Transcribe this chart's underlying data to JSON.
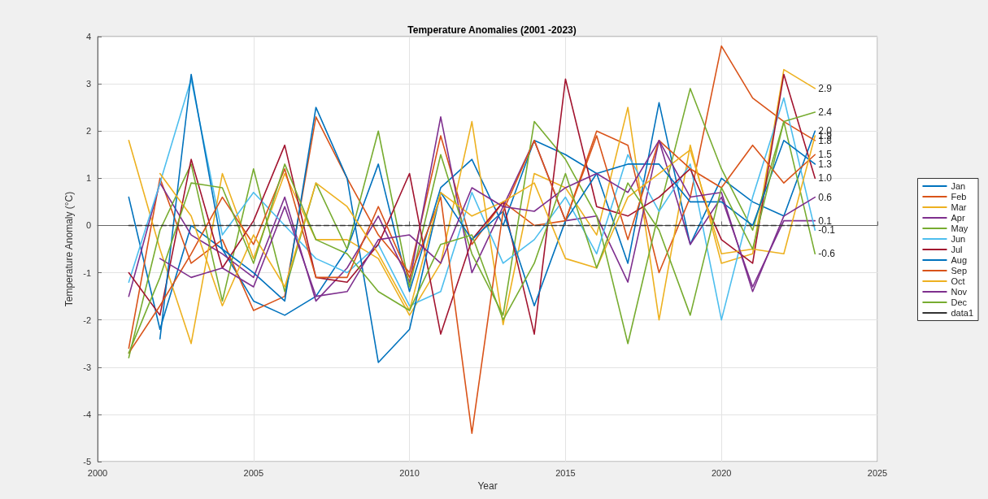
{
  "chart_data": {
    "type": "line",
    "title": "Temperature Anomalies (2001 -2023)",
    "xlabel": "Year",
    "ylabel": "Temperature Anomaly (°C)",
    "x": [
      2001,
      2002,
      2003,
      2004,
      2005,
      2006,
      2007,
      2008,
      2009,
      2010,
      2011,
      2012,
      2013,
      2014,
      2015,
      2016,
      2017,
      2018,
      2019,
      2020,
      2021,
      2022,
      2023
    ],
    "series": [
      {
        "name": "Jan",
        "color": "#0072bd",
        "values": [
          0.6,
          -2.2,
          0.0,
          -0.5,
          -1.6,
          -1.9,
          -1.5,
          -0.5,
          1.3,
          -1.4,
          0.8,
          1.4,
          0.0,
          1.8,
          1.5,
          1.1,
          -0.8,
          2.6,
          -0.4,
          1.0,
          0.5,
          0.2,
          2.0
        ],
        "value_labels": [
          null,
          null,
          null,
          null,
          null,
          null,
          null,
          null,
          null,
          null,
          null,
          null,
          null,
          null,
          null,
          null,
          null,
          null,
          null,
          null,
          null,
          null,
          "2.0"
        ]
      },
      {
        "name": "Feb",
        "color": "#d95319",
        "values": [
          -2.6,
          1.0,
          -0.8,
          -0.3,
          -1.8,
          -1.5,
          2.3,
          1.0,
          -0.2,
          -1.0,
          1.9,
          -0.4,
          0.5,
          0.0,
          0.1,
          2.0,
          1.7,
          -1.0,
          0.6,
          3.8,
          2.7,
          2.2,
          1.8
        ],
        "value_labels": [
          null,
          null,
          null,
          null,
          null,
          null,
          null,
          null,
          null,
          null,
          null,
          null,
          null,
          null,
          null,
          null,
          null,
          null,
          null,
          null,
          null,
          null,
          "1.8"
        ]
      },
      {
        "name": "Mar",
        "color": "#edb120",
        "values": [
          1.8,
          -0.5,
          -2.5,
          1.1,
          -0.7,
          1.1,
          -0.3,
          -0.3,
          -0.7,
          -1.9,
          -0.8,
          2.2,
          -2.1,
          1.1,
          0.8,
          -0.2,
          2.5,
          -2.0,
          1.7,
          -0.8,
          -0.6,
          3.3,
          2.9
        ],
        "value_labels": [
          null,
          null,
          null,
          null,
          null,
          null,
          null,
          null,
          null,
          null,
          null,
          null,
          null,
          null,
          null,
          null,
          null,
          null,
          null,
          null,
          null,
          null,
          "2.9"
        ]
      },
      {
        "name": "Apr",
        "color": "#7e2f8e",
        "values": [
          -1.5,
          0.9,
          -0.2,
          -0.6,
          -1.1,
          0.6,
          -1.6,
          -0.9,
          0.2,
          -1.2,
          2.3,
          -1.0,
          0.4,
          1.8,
          0.1,
          0.2,
          -1.2,
          1.8,
          -0.4,
          0.6,
          -1.3,
          0.1,
          0.1
        ],
        "value_labels": [
          null,
          null,
          null,
          null,
          null,
          null,
          null,
          null,
          null,
          null,
          null,
          null,
          null,
          null,
          null,
          null,
          null,
          null,
          null,
          null,
          null,
          null,
          "0.1"
        ]
      },
      {
        "name": "May",
        "color": "#77ac30",
        "values": [
          -2.8,
          -0.1,
          1.3,
          -1.6,
          1.2,
          -1.4,
          0.9,
          -0.5,
          2.0,
          -1.3,
          1.5,
          -0.6,
          -1.9,
          2.2,
          1.4,
          0.2,
          -2.5,
          0.3,
          2.9,
          1.2,
          -0.1,
          2.2,
          -0.6
        ],
        "value_labels": [
          null,
          null,
          null,
          null,
          null,
          null,
          null,
          null,
          null,
          null,
          null,
          null,
          null,
          null,
          null,
          null,
          null,
          null,
          null,
          null,
          null,
          null,
          "-0.6"
        ]
      },
      {
        "name": "Jun",
        "color": "#4dbeee",
        "values": [
          -1.2,
          0.9,
          3.1,
          -0.2,
          0.7,
          0.0,
          -0.7,
          -1.0,
          -0.4,
          -1.7,
          -1.4,
          0.7,
          -0.8,
          -0.3,
          0.6,
          -0.6,
          1.5,
          0.3,
          1.3,
          -2.0,
          0.6,
          2.7,
          -0.1
        ],
        "value_labels": [
          null,
          null,
          null,
          null,
          null,
          null,
          null,
          null,
          null,
          null,
          null,
          null,
          null,
          null,
          null,
          null,
          null,
          null,
          null,
          null,
          null,
          null,
          "-0.1"
        ]
      },
      {
        "name": "Jul",
        "color": "#a2142f",
        "values": [
          -1.0,
          -1.9,
          1.4,
          -0.9,
          0.1,
          1.7,
          -1.1,
          -1.2,
          -0.4,
          1.1,
          -2.3,
          -0.3,
          0.5,
          -2.3,
          3.1,
          0.4,
          0.2,
          0.6,
          1.2,
          -0.3,
          -0.8,
          3.2,
          1.0
        ],
        "value_labels": [
          null,
          null,
          null,
          null,
          null,
          null,
          null,
          null,
          null,
          null,
          null,
          null,
          null,
          null,
          null,
          null,
          null,
          null,
          null,
          null,
          null,
          null,
          "1.0"
        ]
      },
      {
        "name": "Aug",
        "color": "#0072bd",
        "values": [
          null,
          -2.4,
          3.2,
          -0.5,
          -1.0,
          -1.6,
          2.5,
          1.0,
          -2.9,
          -2.2,
          0.7,
          -0.3,
          0.3,
          -1.7,
          0.1,
          1.1,
          1.3,
          1.3,
          0.5,
          0.5,
          0.0,
          1.8,
          1.3
        ],
        "value_labels": [
          null,
          null,
          null,
          null,
          null,
          null,
          null,
          null,
          null,
          null,
          null,
          null,
          null,
          null,
          null,
          null,
          null,
          null,
          null,
          null,
          null,
          null,
          "1.3"
        ]
      },
      {
        "name": "Sep",
        "color": "#d95319",
        "values": [
          -2.7,
          -1.7,
          -0.6,
          0.6,
          -0.4,
          1.2,
          -1.1,
          -1.1,
          0.4,
          -1.1,
          0.6,
          -4.4,
          0.3,
          1.8,
          0.1,
          1.9,
          -0.3,
          1.8,
          1.2,
          0.8,
          1.7,
          0.9,
          1.5
        ],
        "value_labels": [
          null,
          null,
          null,
          null,
          null,
          null,
          null,
          null,
          null,
          null,
          null,
          null,
          null,
          null,
          null,
          null,
          null,
          null,
          null,
          null,
          null,
          null,
          "1.5"
        ]
      },
      {
        "name": "Oct",
        "color": "#edb120",
        "values": [
          null,
          1.1,
          0.2,
          -1.7,
          -0.2,
          -1.3,
          0.9,
          0.4,
          -0.6,
          -1.8,
          0.7,
          0.2,
          0.5,
          0.9,
          -0.7,
          -0.9,
          0.6,
          1.1,
          1.6,
          -0.6,
          -0.5,
          -0.6,
          1.9
        ],
        "value_labels": [
          null,
          null,
          null,
          null,
          null,
          null,
          null,
          null,
          null,
          null,
          null,
          null,
          null,
          null,
          null,
          null,
          null,
          null,
          null,
          null,
          null,
          null,
          "1.9"
        ]
      },
      {
        "name": "Nov",
        "color": "#7e2f8e",
        "values": [
          null,
          -0.7,
          -1.1,
          -0.9,
          -1.3,
          0.4,
          -1.5,
          -1.4,
          -0.3,
          -0.2,
          -0.8,
          0.8,
          0.4,
          0.3,
          0.8,
          1.1,
          0.7,
          1.8,
          0.6,
          0.7,
          -1.4,
          0.2,
          0.6
        ],
        "value_labels": [
          null,
          null,
          null,
          null,
          null,
          null,
          null,
          null,
          null,
          null,
          null,
          null,
          null,
          null,
          null,
          null,
          null,
          null,
          null,
          null,
          null,
          null,
          "0.6"
        ]
      },
      {
        "name": "Dec",
        "color": "#77ac30",
        "values": [
          -2.7,
          -1.1,
          0.9,
          0.8,
          -0.8,
          1.3,
          -0.3,
          -0.6,
          -1.4,
          -1.8,
          -0.4,
          -0.2,
          -2.0,
          -0.8,
          1.1,
          -0.9,
          0.9,
          -0.1,
          -1.9,
          0.8,
          -0.5,
          2.2,
          2.4
        ],
        "value_labels": [
          null,
          null,
          null,
          null,
          null,
          null,
          null,
          null,
          null,
          null,
          null,
          null,
          null,
          null,
          null,
          null,
          null,
          null,
          null,
          null,
          null,
          null,
          "2.4"
        ]
      },
      {
        "name": "data1",
        "color": "#333333",
        "line_style": "dashed",
        "x": [
          2001,
          2023
        ],
        "values": [
          0,
          0
        ]
      }
    ],
    "xlim": [
      2000,
      2025
    ],
    "xticks": [
      2000,
      2005,
      2010,
      2015,
      2020,
      2025
    ],
    "ylim": [
      -5,
      4
    ],
    "yticks": [
      -5,
      -4,
      -3,
      -2,
      -1,
      0,
      1,
      2,
      3,
      4
    ],
    "grid": true,
    "legend": "right",
    "marker": "none",
    "line_style": "solid"
  }
}
